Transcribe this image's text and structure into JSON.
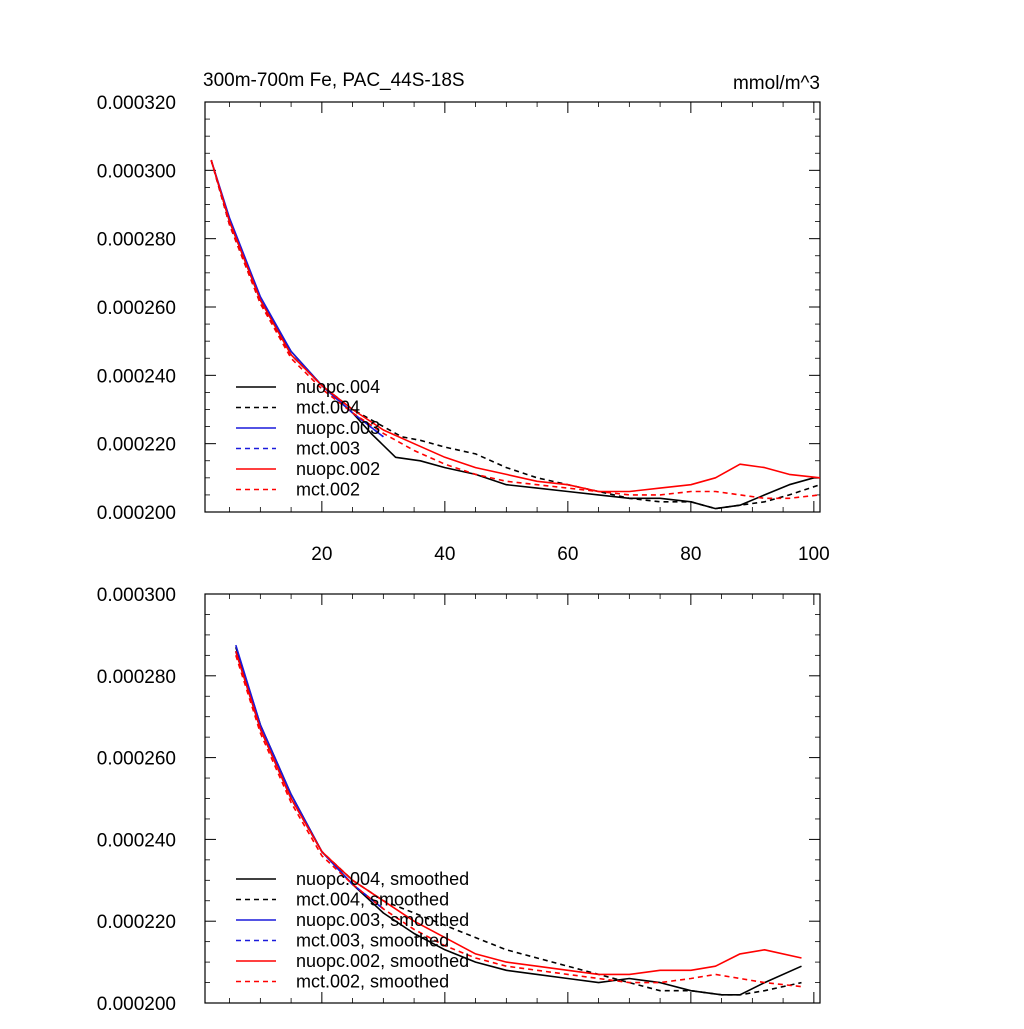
{
  "title": "300m-700m Fe, PAC_44S-18S",
  "units": "mmol/m^3",
  "colors": {
    "black": "#000000",
    "blue": "#1a1adc",
    "red": "#ff0000"
  },
  "chart_data": [
    {
      "type": "line",
      "xlim": [
        1,
        101
      ],
      "ylim": [
        0.0002,
        0.00032
      ],
      "x_ticks": [
        20,
        40,
        60,
        80,
        100
      ],
      "x_tick_labels": [
        "20",
        "40",
        "60",
        "80",
        "100"
      ],
      "y_ticks": [
        0.0002,
        0.00022,
        0.00024,
        0.00026,
        0.00028,
        0.0003,
        0.00032
      ],
      "y_tick_labels": [
        "0.000200",
        "0.000220",
        "0.000240",
        "0.000260",
        "0.000280",
        "0.000300",
        "0.000320"
      ],
      "series": [
        {
          "name": "nuopc.004",
          "color": "black",
          "dash": false,
          "points": [
            [
              2,
              0.000303
            ],
            [
              5,
              0.000285
            ],
            [
              10,
              0.000262
            ],
            [
              15,
              0.000247
            ],
            [
              20,
              0.000237
            ],
            [
              25,
              0.000229
            ],
            [
              28,
              0.000223
            ],
            [
              32,
              0.000216
            ],
            [
              36,
              0.000215
            ],
            [
              40,
              0.000213
            ],
            [
              45,
              0.000211
            ],
            [
              50,
              0.000208
            ],
            [
              55,
              0.000207
            ],
            [
              60,
              0.000206
            ],
            [
              65,
              0.000205
            ],
            [
              70,
              0.000204
            ],
            [
              75,
              0.000204
            ],
            [
              80,
              0.000203
            ],
            [
              84,
              0.000201
            ],
            [
              88,
              0.000202
            ],
            [
              92,
              0.000205
            ],
            [
              96,
              0.000208
            ],
            [
              100,
              0.00021
            ],
            [
              101,
              0.00021
            ]
          ]
        },
        {
          "name": "mct.004",
          "color": "black",
          "dash": true,
          "points": [
            [
              2,
              0.000303
            ],
            [
              5,
              0.000284
            ],
            [
              10,
              0.000261
            ],
            [
              15,
              0.000246
            ],
            [
              20,
              0.000237
            ],
            [
              25,
              0.00023
            ],
            [
              30,
              0.000225
            ],
            [
              33,
              0.000222
            ],
            [
              36,
              0.000221
            ],
            [
              40,
              0.000219
            ],
            [
              45,
              0.000217
            ],
            [
              50,
              0.000213
            ],
            [
              55,
              0.00021
            ],
            [
              60,
              0.000208
            ],
            [
              65,
              0.000206
            ],
            [
              70,
              0.000204
            ],
            [
              75,
              0.000203
            ],
            [
              80,
              0.000203
            ],
            [
              84,
              0.000201
            ],
            [
              88,
              0.000202
            ],
            [
              92,
              0.000203
            ],
            [
              96,
              0.000205
            ],
            [
              101,
              0.000208
            ]
          ]
        },
        {
          "name": "nuopc.003",
          "color": "blue",
          "dash": false,
          "points": [
            [
              2,
              0.000303
            ],
            [
              5,
              0.000286
            ],
            [
              10,
              0.000263
            ],
            [
              15,
              0.000247
            ],
            [
              20,
              0.000237
            ],
            [
              25,
              0.000229
            ],
            [
              30,
              0.000222
            ]
          ]
        },
        {
          "name": "mct.003",
          "color": "blue",
          "dash": true,
          "points": [
            [
              2,
              0.000303
            ],
            [
              5,
              0.000284
            ],
            [
              10,
              0.000262
            ],
            [
              15,
              0.000246
            ],
            [
              20,
              0.000237
            ],
            [
              25,
              0.000229
            ],
            [
              30,
              0.000222
            ]
          ]
        },
        {
          "name": "nuopc.002",
          "color": "red",
          "dash": false,
          "points": [
            [
              2,
              0.000303
            ],
            [
              5,
              0.000285
            ],
            [
              10,
              0.000262
            ],
            [
              15,
              0.000246
            ],
            [
              20,
              0.000237
            ],
            [
              25,
              0.00023
            ],
            [
              30,
              0.000224
            ],
            [
              35,
              0.00022
            ],
            [
              40,
              0.000216
            ],
            [
              45,
              0.000213
            ],
            [
              50,
              0.000211
            ],
            [
              55,
              0.000209
            ],
            [
              60,
              0.000208
            ],
            [
              65,
              0.000206
            ],
            [
              70,
              0.000206
            ],
            [
              75,
              0.000207
            ],
            [
              80,
              0.000208
            ],
            [
              84,
              0.00021
            ],
            [
              88,
              0.000214
            ],
            [
              92,
              0.000213
            ],
            [
              96,
              0.000211
            ],
            [
              101,
              0.00021
            ]
          ]
        },
        {
          "name": "mct.002",
          "color": "red",
          "dash": true,
          "points": [
            [
              2,
              0.000303
            ],
            [
              5,
              0.000284
            ],
            [
              10,
              0.000261
            ],
            [
              15,
              0.000245
            ],
            [
              20,
              0.000236
            ],
            [
              25,
              0.000229
            ],
            [
              30,
              0.000223
            ],
            [
              35,
              0.000218
            ],
            [
              40,
              0.000214
            ],
            [
              45,
              0.000211
            ],
            [
              50,
              0.000209
            ],
            [
              55,
              0.000208
            ],
            [
              60,
              0.000207
            ],
            [
              65,
              0.000206
            ],
            [
              70,
              0.000205
            ],
            [
              75,
              0.000205
            ],
            [
              80,
              0.000206
            ],
            [
              84,
              0.000206
            ],
            [
              88,
              0.000205
            ],
            [
              92,
              0.000204
            ],
            [
              96,
              0.000204
            ],
            [
              101,
              0.000205
            ]
          ]
        }
      ]
    },
    {
      "type": "line",
      "xlim": [
        1,
        101
      ],
      "ylim": [
        0.0002,
        0.0003
      ],
      "x_ticks": [
        20,
        40,
        60,
        80,
        100
      ],
      "x_tick_labels": [],
      "y_ticks": [
        0.0002,
        0.00022,
        0.00024,
        0.00026,
        0.00028,
        0.0003
      ],
      "y_tick_labels": [
        "0.000200",
        "0.000220",
        "0.000240",
        "0.000260",
        "0.000280",
        "0.000300"
      ],
      "series": [
        {
          "name": "nuopc.004, smoothed",
          "color": "black",
          "dash": false,
          "points": [
            [
              6,
              0.000287
            ],
            [
              10,
              0.000268
            ],
            [
              15,
              0.000251
            ],
            [
              20,
              0.000237
            ],
            [
              25,
              0.000229
            ],
            [
              30,
              0.000222
            ],
            [
              35,
              0.000217
            ],
            [
              40,
              0.000213
            ],
            [
              45,
              0.00021
            ],
            [
              50,
              0.000208
            ],
            [
              55,
              0.000207
            ],
            [
              60,
              0.000206
            ],
            [
              65,
              0.000205
            ],
            [
              70,
              0.000206
            ],
            [
              75,
              0.000205
            ],
            [
              80,
              0.000203
            ],
            [
              85,
              0.000202
            ],
            [
              88,
              0.000202
            ],
            [
              92,
              0.000205
            ],
            [
              98,
              0.000209
            ]
          ]
        },
        {
          "name": "mct.004, smoothed",
          "color": "black",
          "dash": true,
          "points": [
            [
              6,
              0.000286
            ],
            [
              10,
              0.000267
            ],
            [
              15,
              0.00025
            ],
            [
              20,
              0.000237
            ],
            [
              25,
              0.00023
            ],
            [
              30,
              0.000225
            ],
            [
              35,
              0.000222
            ],
            [
              40,
              0.000219
            ],
            [
              45,
              0.000216
            ],
            [
              50,
              0.000213
            ],
            [
              55,
              0.000211
            ],
            [
              60,
              0.000209
            ],
            [
              65,
              0.000207
            ],
            [
              70,
              0.000205
            ],
            [
              75,
              0.000203
            ],
            [
              80,
              0.000203
            ],
            [
              85,
              0.000202
            ],
            [
              88,
              0.000202
            ],
            [
              92,
              0.000203
            ],
            [
              98,
              0.000205
            ]
          ]
        },
        {
          "name": "nuopc.003, smoothed",
          "color": "blue",
          "dash": false,
          "points": [
            [
              6,
              0.0002875
            ],
            [
              10,
              0.000268
            ],
            [
              15,
              0.000251
            ],
            [
              20,
              0.000237
            ],
            [
              25,
              0.000229
            ],
            [
              30,
              0.000223
            ]
          ]
        },
        {
          "name": "mct.003, smoothed",
          "color": "blue",
          "dash": true,
          "points": [
            [
              6,
              0.000286
            ],
            [
              10,
              0.000267
            ],
            [
              15,
              0.00025
            ],
            [
              20,
              0.000237
            ],
            [
              25,
              0.000229
            ],
            [
              30,
              0.000223
            ]
          ]
        },
        {
          "name": "nuopc.002, smoothed",
          "color": "red",
          "dash": false,
          "points": [
            [
              6,
              0.000286
            ],
            [
              10,
              0.000267
            ],
            [
              15,
              0.00025
            ],
            [
              20,
              0.000237
            ],
            [
              25,
              0.00023
            ],
            [
              30,
              0.000225
            ],
            [
              35,
              0.00022
            ],
            [
              40,
              0.000216
            ],
            [
              45,
              0.000212
            ],
            [
              50,
              0.00021
            ],
            [
              55,
              0.000209
            ],
            [
              60,
              0.000208
            ],
            [
              65,
              0.000207
            ],
            [
              70,
              0.000207
            ],
            [
              75,
              0.000208
            ],
            [
              80,
              0.000208
            ],
            [
              84,
              0.000209
            ],
            [
              88,
              0.000212
            ],
            [
              92,
              0.000213
            ],
            [
              98,
              0.000211
            ]
          ]
        },
        {
          "name": "mct.002, smoothed",
          "color": "red",
          "dash": true,
          "points": [
            [
              6,
              0.000285
            ],
            [
              10,
              0.000266
            ],
            [
              15,
              0.000249
            ],
            [
              20,
              0.000236
            ],
            [
              25,
              0.000229
            ],
            [
              30,
              0.000223
            ],
            [
              35,
              0.000218
            ],
            [
              40,
              0.000214
            ],
            [
              45,
              0.000211
            ],
            [
              50,
              0.000209
            ],
            [
              55,
              0.000208
            ],
            [
              60,
              0.000207
            ],
            [
              65,
              0.000206
            ],
            [
              70,
              0.000205
            ],
            [
              75,
              0.000205
            ],
            [
              80,
              0.000206
            ],
            [
              84,
              0.000207
            ],
            [
              88,
              0.000206
            ],
            [
              92,
              0.000205
            ],
            [
              98,
              0.000204
            ]
          ]
        }
      ]
    }
  ]
}
